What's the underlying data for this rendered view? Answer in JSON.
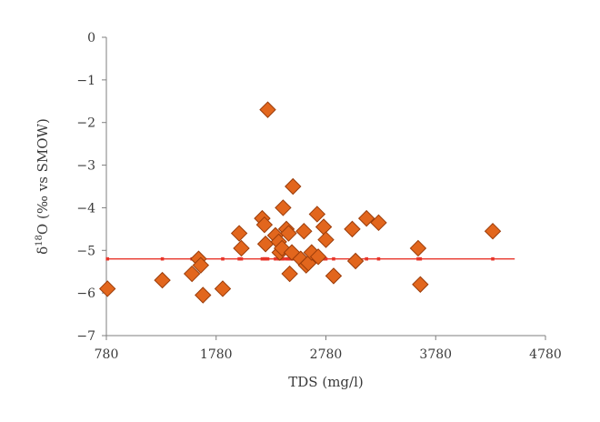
{
  "chart_data": {
    "type": "scatter",
    "xlabel": "TDS (mg/l)",
    "ylabel_prefix": "δ",
    "ylabel_sup": "18",
    "ylabel_suffix": "O (‰ vs SMOW)",
    "xlim": [
      780,
      4780
    ],
    "ylim": [
      -7,
      0
    ],
    "xticks": [
      780,
      1780,
      2780,
      3780,
      4780
    ],
    "yticks": [
      0,
      -1,
      -2,
      -3,
      -4,
      -5,
      -6,
      -7
    ],
    "xtick_labels": [
      "780",
      "1780",
      "2780",
      "3780",
      "4780"
    ],
    "ytick_labels": [
      "0",
      "−1",
      "−2",
      "−3",
      "−4",
      "−5",
      "−6",
      "−7"
    ],
    "trendline": {
      "y": -5.2,
      "x_range": [
        780,
        4500
      ]
    },
    "marker_color": "#e2661d",
    "trend_color": "#e8352a",
    "series": [
      {
        "points": [
          [
            790,
            -5.9
          ],
          [
            1290,
            -5.7
          ],
          [
            1560,
            -5.55
          ],
          [
            1620,
            -5.2
          ],
          [
            1640,
            -5.35
          ],
          [
            1660,
            -6.05
          ],
          [
            1840,
            -5.9
          ],
          [
            1990,
            -4.6
          ],
          [
            2010,
            -4.95
          ],
          [
            2200,
            -4.25
          ],
          [
            2220,
            -4.4
          ],
          [
            2230,
            -4.85
          ],
          [
            2250,
            -1.7
          ],
          [
            2320,
            -4.65
          ],
          [
            2350,
            -4.8
          ],
          [
            2360,
            -5.05
          ],
          [
            2380,
            -4.95
          ],
          [
            2390,
            -4.0
          ],
          [
            2420,
            -4.5
          ],
          [
            2440,
            -4.6
          ],
          [
            2450,
            -5.55
          ],
          [
            2470,
            -5.05
          ],
          [
            2480,
            -3.5
          ],
          [
            2550,
            -5.2
          ],
          [
            2580,
            -4.55
          ],
          [
            2600,
            -5.35
          ],
          [
            2620,
            -5.3
          ],
          [
            2650,
            -5.05
          ],
          [
            2700,
            -4.15
          ],
          [
            2710,
            -5.15
          ],
          [
            2760,
            -4.45
          ],
          [
            2780,
            -4.75
          ],
          [
            2850,
            -5.6
          ],
          [
            3020,
            -4.5
          ],
          [
            3050,
            -5.25
          ],
          [
            3150,
            -4.25
          ],
          [
            3260,
            -4.35
          ],
          [
            3620,
            -4.95
          ],
          [
            3640,
            -5.8
          ],
          [
            4300,
            -4.55
          ]
        ]
      }
    ]
  }
}
